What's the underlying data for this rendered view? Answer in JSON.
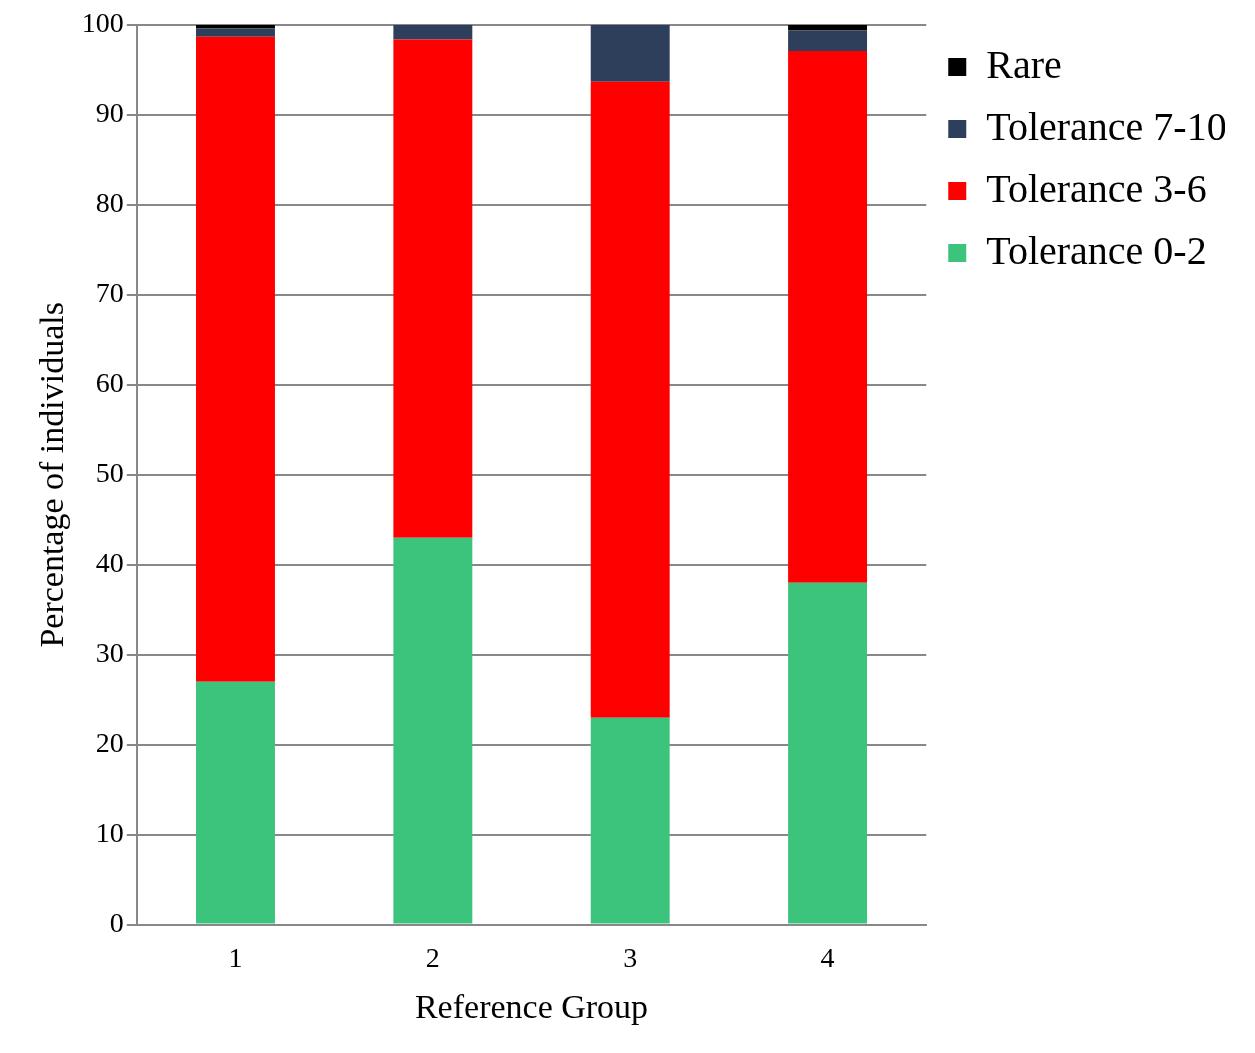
{
  "chart_data": {
    "type": "bar",
    "stacked": true,
    "xlabel": "Reference Group",
    "ylabel": "Percentage of individuals",
    "categories": [
      "1",
      "2",
      "3",
      "4"
    ],
    "series": [
      {
        "name": "Tolerance 0-2",
        "color": "#3cc47c",
        "values": [
          27,
          43,
          23,
          38
        ]
      },
      {
        "name": "Tolerance 3-6",
        "color": "#ff0000",
        "values": [
          71.7,
          55.4,
          70.7,
          59.1
        ]
      },
      {
        "name": "Tolerance 7-10",
        "color": "#2e3f5c",
        "values": [
          0.9,
          1.6,
          6.3,
          2.3
        ]
      },
      {
        "name": "Rare",
        "color": "#000000",
        "values": [
          0.4,
          0,
          0,
          0.6
        ]
      }
    ],
    "ylim": [
      0,
      100
    ],
    "yticks": [
      0,
      10,
      20,
      30,
      40,
      50,
      60,
      70,
      80,
      90,
      100
    ],
    "grid": "y",
    "legend": "top right"
  }
}
